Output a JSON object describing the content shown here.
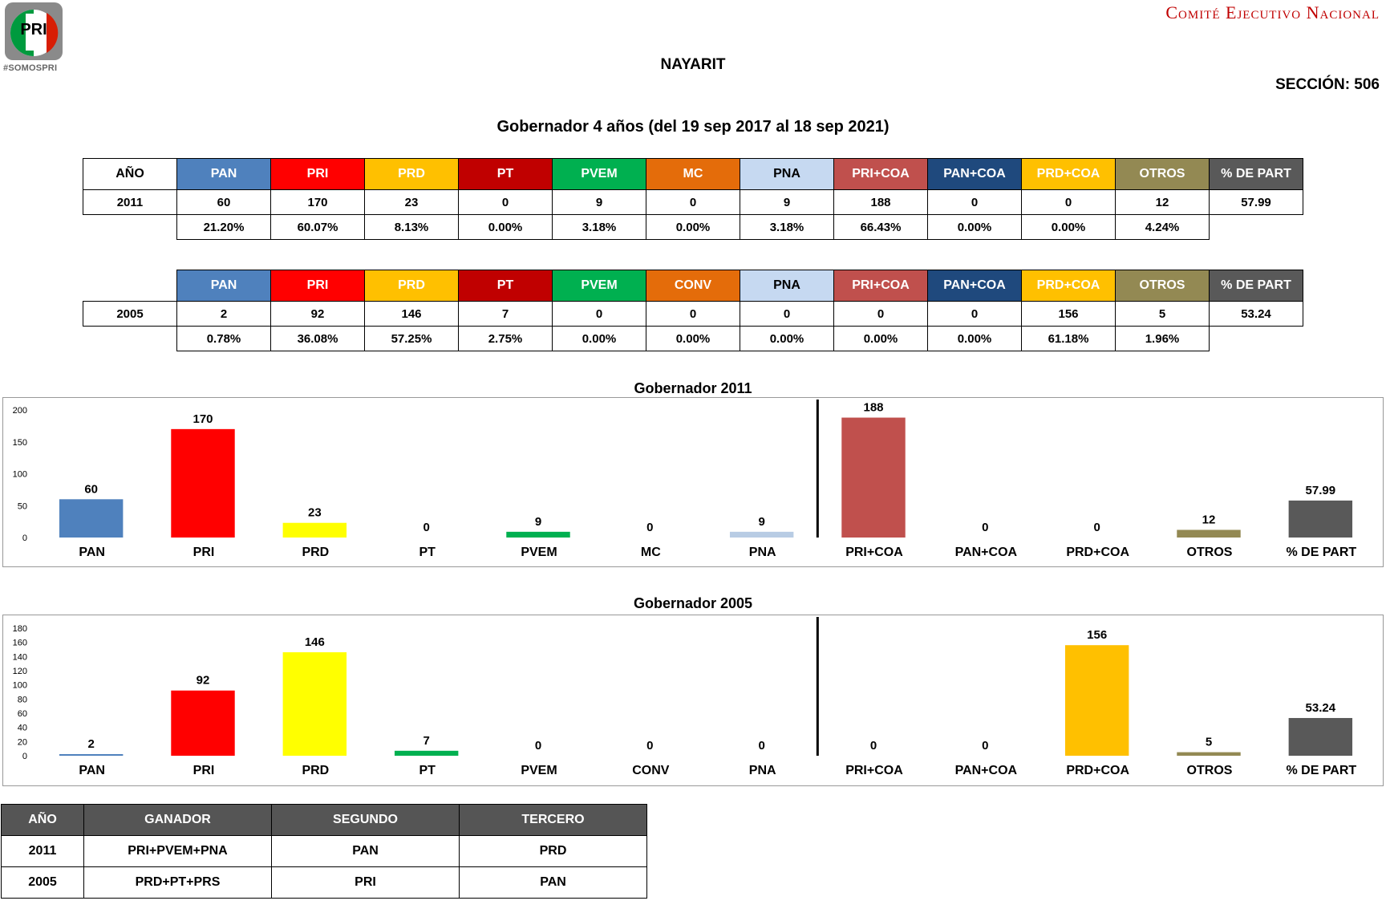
{
  "header": {
    "logo_text": "PRI",
    "logo_tag": "#SOMOSPRI",
    "org": "Comité Ejecutivo Nacional",
    "state": "NAYARIT",
    "seccion": "SECCIÓN: 506",
    "period": "Gobernador 4 años (del 19 sep 2017 al 18 sep 2021)"
  },
  "colors": {
    "PAN": "#4f81bd",
    "PRI": "#ff0000",
    "PRD": "#ffc000",
    "PT": "#c00000",
    "PVEM": "#00b050",
    "MC": "#e46c0a",
    "CONV": "#e46c0a",
    "PNA": "#c6d9f1",
    "PRI+COA": "#c0504d",
    "PAN+COA": "#1f497d",
    "PRD+COA": "#ffc000",
    "OTROS": "#938953",
    "PART": "#595959"
  },
  "table_2011": {
    "year_header": "AÑO",
    "headers": [
      "PAN",
      "PRI",
      "PRD",
      "PT",
      "PVEM",
      "MC",
      "PNA",
      "PRI+COA",
      "PAN+COA",
      "PRD+COA",
      "OTROS",
      "% DE PART"
    ],
    "year": "2011",
    "values": [
      "60",
      "170",
      "23",
      "0",
      "9",
      "0",
      "9",
      "188",
      "0",
      "0",
      "12",
      "57.99"
    ],
    "percents": [
      "21.20%",
      "60.07%",
      "8.13%",
      "0.00%",
      "3.18%",
      "0.00%",
      "3.18%",
      "66.43%",
      "0.00%",
      "0.00%",
      "4.24%"
    ]
  },
  "table_2005": {
    "headers": [
      "PAN",
      "PRI",
      "PRD",
      "PT",
      "PVEM",
      "CONV",
      "PNA",
      "PRI+COA",
      "PAN+COA",
      "PRD+COA",
      "OTROS",
      "% DE PART"
    ],
    "year": "2005",
    "values": [
      "2",
      "92",
      "146",
      "7",
      "0",
      "0",
      "0",
      "0",
      "0",
      "156",
      "5",
      "53.24"
    ],
    "percents": [
      "0.78%",
      "36.08%",
      "57.25%",
      "2.75%",
      "0.00%",
      "0.00%",
      "0.00%",
      "0.00%",
      "0.00%",
      "61.18%",
      "1.96%"
    ]
  },
  "chart_data": [
    {
      "type": "bar",
      "title": "Gobernador  2011",
      "categories": [
        "PAN",
        "PRI",
        "PRD",
        "PT",
        "PVEM",
        "MC",
        "PNA",
        "PRI+COA",
        "PAN+COA",
        "PRD+COA",
        "OTROS",
        "% DE PART"
      ],
      "values": [
        60,
        170,
        23,
        0,
        9,
        0,
        9,
        188,
        0,
        0,
        12,
        57.99
      ],
      "labels": [
        "60",
        "170",
        "23",
        "0",
        "9",
        "0",
        "9",
        "188",
        "0",
        "0",
        "12",
        "57.99"
      ],
      "bar_colors": [
        "#4f81bd",
        "#ff0000",
        "#ffff00",
        "#00b050",
        "#00b050",
        "#e46c0a",
        "#b8cce4",
        "#c0504d",
        "#1f497d",
        "#ffc000",
        "#938953",
        "#595959"
      ],
      "yticks": [
        0,
        50,
        100,
        150,
        200
      ],
      "ylim": [
        0,
        200
      ],
      "separator_after": 7,
      "grid": false
    },
    {
      "type": "bar",
      "title": "Gobernador  2005",
      "categories": [
        "PAN",
        "PRI",
        "PRD",
        "PT",
        "PVEM",
        "CONV",
        "PNA",
        "PRI+COA",
        "PAN+COA",
        "PRD+COA",
        "OTROS",
        "% DE PART"
      ],
      "values": [
        2,
        92,
        146,
        7,
        0,
        0,
        0,
        0,
        0,
        156,
        5,
        53.24
      ],
      "labels": [
        "2",
        "92",
        "146",
        "7",
        "0",
        "0",
        "0",
        "0",
        "0",
        "156",
        "5",
        "53.24"
      ],
      "bar_colors": [
        "#4f81bd",
        "#ff0000",
        "#ffff00",
        "#00b050",
        "#00b050",
        "#e46c0a",
        "#b8cce4",
        "#c0504d",
        "#1f497d",
        "#ffc000",
        "#938953",
        "#595959"
      ],
      "yticks": [
        0,
        20,
        40,
        60,
        80,
        100,
        120,
        140,
        160,
        180
      ],
      "ylim": [
        0,
        180
      ],
      "separator_after": 7,
      "grid": false
    }
  ],
  "winners": {
    "headers": [
      "AÑO",
      "GANADOR",
      "SEGUNDO",
      "TERCERO"
    ],
    "rows": [
      [
        "2011",
        "PRI+PVEM+PNA",
        "PAN",
        "PRD"
      ],
      [
        "2005",
        "PRD+PT+PRS",
        "PRI",
        "PAN"
      ]
    ]
  }
}
